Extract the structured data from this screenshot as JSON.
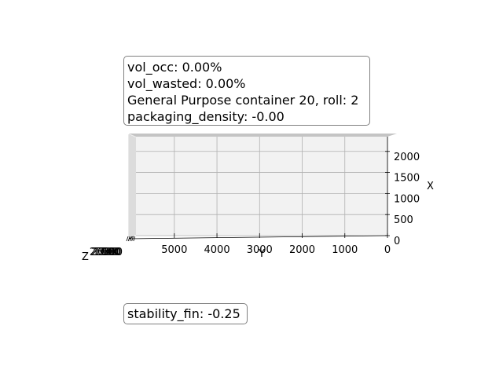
{
  "info": {
    "vol_occ": "vol_occ: 0.00%",
    "vol_wasted": "vol_wasted: 0.00%",
    "container": "General Purpose container 20, roll: 2",
    "packaging_density": "packaging_density: -0.00"
  },
  "stability": "stability_fin: -0.25",
  "chart_data": {
    "type": "3d-box",
    "title": "",
    "y_axis": {
      "label": "Y",
      "ticks": [
        5000,
        4000,
        3000,
        2000,
        1000,
        0
      ],
      "tick_labels": [
        "5000",
        "4000",
        "3000",
        "2000",
        "1000",
        "0"
      ],
      "range": [
        0,
        5900
      ],
      "direction": "reversed"
    },
    "x_axis": {
      "label": "X",
      "ticks": [
        0,
        500,
        1000,
        1500,
        2000
      ],
      "tick_labels": [
        "0",
        "500",
        "1000",
        "1500",
        "2000"
      ],
      "range": [
        0,
        2350
      ]
    },
    "z_axis": {
      "label": "Z",
      "tick_labels": [
        "0",
        "500",
        "1000",
        "1500",
        "2000",
        "2500"
      ]
    },
    "grid": true,
    "pane_color": "#f2f2f2",
    "grid_color": "#b0b0b0",
    "items": []
  }
}
